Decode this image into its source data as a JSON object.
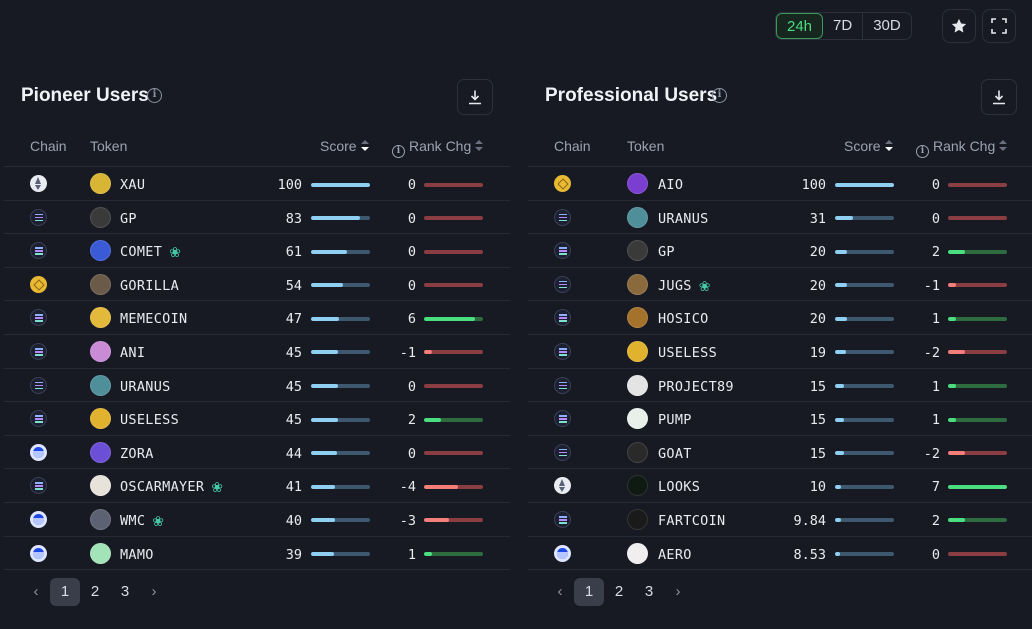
{
  "ranges": [
    "24h",
    "7D",
    "30D"
  ],
  "active_range": "24h",
  "columns": {
    "chain": "Chain",
    "token": "Token",
    "score": "Score",
    "rank_chg": "Rank Chg"
  },
  "panels": [
    {
      "title": "Pioneer Users",
      "rows": [
        {
          "chain": "ethereum",
          "token": "XAU",
          "icon": "#d8b534",
          "score": "100",
          "score_fraction": 1.0,
          "chg": "0",
          "chg_value": 0,
          "new": false
        },
        {
          "chain": "solana",
          "token": "GP",
          "icon": "#3a3a3a",
          "score": "83",
          "score_fraction": 0.83,
          "chg": "0",
          "chg_value": 0,
          "new": false
        },
        {
          "chain": "solana",
          "token": "COMET",
          "icon": "#3b5bd6",
          "score": "61",
          "score_fraction": 0.61,
          "chg": "0",
          "chg_value": 0,
          "new": true
        },
        {
          "chain": "bnb",
          "token": "GORILLA",
          "icon": "#6b5a48",
          "score": "54",
          "score_fraction": 0.54,
          "chg": "0",
          "chg_value": 0,
          "new": false
        },
        {
          "chain": "solana",
          "token": "MEMECOIN",
          "icon": "#e3b93b",
          "score": "47",
          "score_fraction": 0.47,
          "chg": "6",
          "chg_value": 6,
          "new": false
        },
        {
          "chain": "solana",
          "token": "ANI",
          "icon": "#c98ad6",
          "score": "45",
          "score_fraction": 0.45,
          "chg": "-1",
          "chg_value": -1,
          "new": false
        },
        {
          "chain": "solana",
          "token": "URANUS",
          "icon": "#4f8f9a",
          "score": "45",
          "score_fraction": 0.45,
          "chg": "0",
          "chg_value": 0,
          "new": false
        },
        {
          "chain": "solana",
          "token": "USELESS",
          "icon": "#e1b22e",
          "score": "45",
          "score_fraction": 0.45,
          "chg": "2",
          "chg_value": 2,
          "new": false
        },
        {
          "chain": "base",
          "token": "ZORA",
          "icon": "#6b4fd6",
          "score": "44",
          "score_fraction": 0.44,
          "chg": "0",
          "chg_value": 0,
          "new": false
        },
        {
          "chain": "solana",
          "token": "OSCARMAYER",
          "icon": "#e8e3da",
          "score": "41",
          "score_fraction": 0.41,
          "chg": "-4",
          "chg_value": -4,
          "new": true
        },
        {
          "chain": "base",
          "token": "WMC",
          "icon": "#5c6272",
          "score": "40",
          "score_fraction": 0.4,
          "chg": "-3",
          "chg_value": -3,
          "new": true
        },
        {
          "chain": "base",
          "token": "MAMO",
          "icon": "#a3e3b8",
          "score": "39",
          "score_fraction": 0.39,
          "chg": "1",
          "chg_value": 1,
          "new": false
        }
      ]
    },
    {
      "title": "Professional Users",
      "rows": [
        {
          "chain": "bnb",
          "token": "AIO",
          "icon": "#7a3fd1",
          "score": "100",
          "score_fraction": 1.0,
          "chg": "0",
          "chg_value": 0,
          "new": false
        },
        {
          "chain": "solana",
          "token": "URANUS",
          "icon": "#4f8f9a",
          "score": "31",
          "score_fraction": 0.31,
          "chg": "0",
          "chg_value": 0,
          "new": false
        },
        {
          "chain": "solana",
          "token": "GP",
          "icon": "#3a3a3a",
          "score": "20",
          "score_fraction": 0.2,
          "chg": "2",
          "chg_value": 2,
          "new": false
        },
        {
          "chain": "solana",
          "token": "JUGS",
          "icon": "#8a6a3c",
          "score": "20",
          "score_fraction": 0.2,
          "chg": "-1",
          "chg_value": -1,
          "new": true
        },
        {
          "chain": "solana",
          "token": "HOSICO",
          "icon": "#a5722c",
          "score": "20",
          "score_fraction": 0.2,
          "chg": "1",
          "chg_value": 1,
          "new": false
        },
        {
          "chain": "solana",
          "token": "USELESS",
          "icon": "#e1b22e",
          "score": "19",
          "score_fraction": 0.19,
          "chg": "-2",
          "chg_value": -2,
          "new": false
        },
        {
          "chain": "solana",
          "token": "PROJECT89",
          "icon": "#e4e4e4",
          "score": "15",
          "score_fraction": 0.15,
          "chg": "1",
          "chg_value": 1,
          "new": false
        },
        {
          "chain": "solana",
          "token": "PUMP",
          "icon": "#e9efe9",
          "score": "15",
          "score_fraction": 0.15,
          "chg": "1",
          "chg_value": 1,
          "new": false
        },
        {
          "chain": "solana",
          "token": "GOAT",
          "icon": "#2a2a2a",
          "score": "15",
          "score_fraction": 0.15,
          "chg": "-2",
          "chg_value": -2,
          "new": false
        },
        {
          "chain": "ethereum",
          "token": "LOOKS",
          "icon": "#0f1a13",
          "score": "10",
          "score_fraction": 0.1,
          "chg": "7",
          "chg_value": 7,
          "new": false
        },
        {
          "chain": "solana",
          "token": "FARTCOIN",
          "icon": "#1a1a1a",
          "score": "9.84",
          "score_fraction": 0.098,
          "chg": "2",
          "chg_value": 2,
          "new": false
        },
        {
          "chain": "base",
          "token": "AERO",
          "icon": "#f1eef0",
          "score": "8.53",
          "score_fraction": 0.085,
          "chg": "0",
          "chg_value": 0,
          "new": false
        }
      ]
    }
  ],
  "pagination": {
    "pages": [
      "1",
      "2",
      "3"
    ],
    "active": "1"
  }
}
